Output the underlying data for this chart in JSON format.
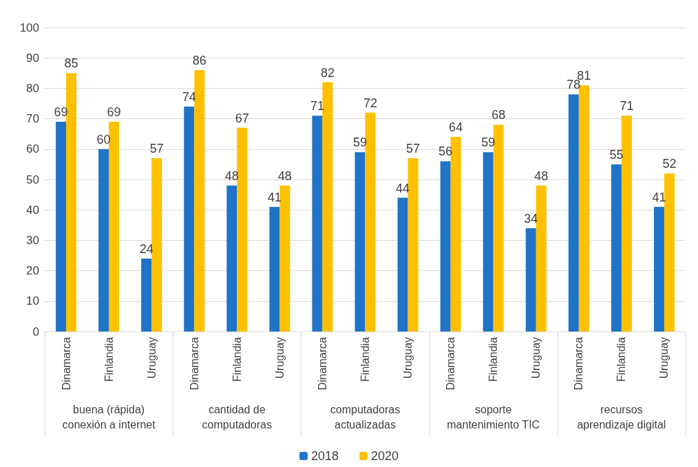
{
  "chart_data": {
    "type": "bar",
    "categories": [
      "Dinamarca",
      "Finlandia",
      "Uruguay",
      "Dinamarca",
      "Finlandia",
      "Uruguay",
      "Dinamarca",
      "Finlandia",
      "Uruguay",
      "Dinamarca",
      "Finlandia",
      "Uruguay",
      "Dinamarca",
      "Finlandia",
      "Uruguay"
    ],
    "series": [
      {
        "name": "2018",
        "color": "#1f74c8",
        "values": [
          69,
          60,
          24,
          74,
          48,
          41,
          71,
          59,
          44,
          56,
          59,
          34,
          78,
          55,
          41
        ]
      },
      {
        "name": "2020",
        "color": "#ffc000",
        "values": [
          85,
          69,
          57,
          86,
          67,
          48,
          82,
          72,
          57,
          64,
          68,
          48,
          81,
          71,
          52
        ]
      }
    ],
    "annotations": [
      "buena (rápida)\nconexión a internet",
      "cantidad de\ncomputadoras",
      "computadoras\nactualizadas",
      "soporte\nmantenimiento TIC",
      "recursos\naprendizaje digital"
    ],
    "ylim": [
      0,
      100
    ],
    "yticks": [
      0,
      10,
      20,
      30,
      40,
      50,
      60,
      70,
      80,
      90,
      100
    ],
    "grid": "y",
    "legend": "bottom",
    "data_labels": true
  }
}
